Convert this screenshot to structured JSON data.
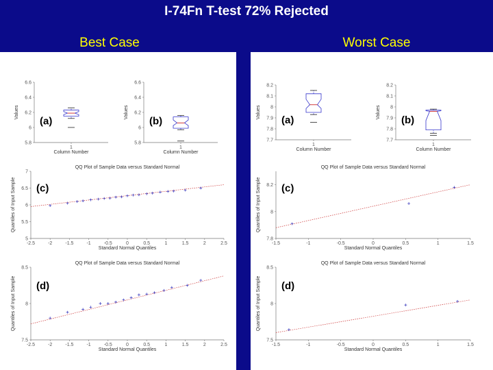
{
  "title": "I-74Fn T-test 72% Rejected",
  "columns": {
    "best": "Best Case",
    "worst": "Worst Case"
  },
  "chart_data": [
    {
      "id": "best-a",
      "type": "box",
      "label": "(a)",
      "xlabel": "Column Number",
      "ylabel": "Values",
      "xticks": [
        "1"
      ],
      "yticks": [
        "5.8",
        "6",
        "6.2",
        "6.4",
        "6.6"
      ],
      "ylim": [
        5.8,
        6.6
      ],
      "box": {
        "whisker_low": 6.12,
        "q1": 6.15,
        "median": 6.19,
        "q3": 6.23,
        "whisker_high": 6.26,
        "outliers": [
          6.0
        ]
      }
    },
    {
      "id": "best-b",
      "type": "box",
      "label": "(b)",
      "xlabel": "Column Number",
      "ylabel": "Values",
      "xticks": [
        "1"
      ],
      "yticks": [
        "5.8",
        "6",
        "6.2",
        "6.4",
        "6.6"
      ],
      "ylim": [
        5.8,
        6.6
      ],
      "box": {
        "whisker_low": 5.97,
        "q1": 5.99,
        "median": 6.06,
        "q3": 6.14,
        "whisker_high": 6.16,
        "outliers": [
          5.82
        ]
      }
    },
    {
      "id": "best-c",
      "type": "scatter",
      "label": "(c)",
      "title": "QQ Plot of Sample Data versus Standard Normal",
      "xlabel": "Standard Normal Quantiles",
      "ylabel": "Quantiles of Input Sample",
      "xticks": [
        "-2.5",
        "-2",
        "-1.5",
        "-1",
        "-0.5",
        "0",
        "0.5",
        "1",
        "1.5",
        "2",
        "2.5"
      ],
      "xlim": [
        -2.5,
        2.5
      ],
      "yticks": [
        "5",
        "5.5",
        "6",
        "6.5",
        "7"
      ],
      "ylim": [
        5,
        7
      ],
      "line": {
        "x": [
          -2.5,
          2.5
        ],
        "y": [
          5.95,
          6.6
        ]
      },
      "points": [
        [
          -2.0,
          5.98
        ],
        [
          -1.55,
          6.05
        ],
        [
          -1.3,
          6.1
        ],
        [
          -1.15,
          6.12
        ],
        [
          -0.95,
          6.15
        ],
        [
          -0.75,
          6.17
        ],
        [
          -0.6,
          6.19
        ],
        [
          -0.45,
          6.2
        ],
        [
          -0.3,
          6.23
        ],
        [
          -0.15,
          6.24
        ],
        [
          0.0,
          6.27
        ],
        [
          0.15,
          6.29
        ],
        [
          0.3,
          6.3
        ],
        [
          0.5,
          6.33
        ],
        [
          0.65,
          6.35
        ],
        [
          0.85,
          6.38
        ],
        [
          1.05,
          6.4
        ],
        [
          1.2,
          6.41
        ],
        [
          1.5,
          6.44
        ],
        [
          1.9,
          6.5
        ]
      ]
    },
    {
      "id": "best-d",
      "type": "scatter",
      "label": "(d)",
      "title": "QQ Plot of Sample Data versus Standard Normal",
      "xlabel": "Standard Normal Quantiles",
      "ylabel": "Quantiles of Input Sample",
      "xticks": [
        "-2.5",
        "-2",
        "-1.5",
        "-1",
        "-0.5",
        "0",
        "0.5",
        "1",
        "1.5",
        "2",
        "2.5"
      ],
      "xlim": [
        -2.5,
        2.5
      ],
      "yticks": [
        "7.5",
        "8",
        "8.5"
      ],
      "ylim": [
        7.5,
        8.5
      ],
      "line": {
        "x": [
          -2.5,
          2.5
        ],
        "y": [
          7.72,
          8.38
        ]
      },
      "points": [
        [
          -2.0,
          7.8
        ],
        [
          -1.55,
          7.88
        ],
        [
          -1.15,
          7.92
        ],
        [
          -0.95,
          7.95
        ],
        [
          -0.7,
          8.0
        ],
        [
          -0.5,
          8.0
        ],
        [
          -0.3,
          8.02
        ],
        [
          -0.1,
          8.05
        ],
        [
          0.1,
          8.08
        ],
        [
          0.3,
          8.12
        ],
        [
          0.5,
          8.13
        ],
        [
          0.7,
          8.15
        ],
        [
          0.95,
          8.18
        ],
        [
          1.15,
          8.22
        ],
        [
          1.55,
          8.25
        ],
        [
          1.9,
          8.32
        ]
      ]
    },
    {
      "id": "worst-a",
      "type": "box",
      "label": "(a)",
      "xlabel": "Column Number",
      "ylabel": "Values",
      "xticks": [
        "1"
      ],
      "yticks": [
        "7.7",
        "7.8",
        "7.9",
        "8",
        "8.1",
        "8.2"
      ],
      "ylim": [
        7.7,
        8.2
      ],
      "box": {
        "whisker_low": 7.93,
        "q1": 7.95,
        "median": 8.02,
        "q3": 8.12,
        "whisker_high": 8.15,
        "outliers": [
          7.86
        ]
      }
    },
    {
      "id": "worst-b",
      "type": "box",
      "label": "(b)",
      "xlabel": "Column Number",
      "ylabel": "Values",
      "xticks": [
        "1"
      ],
      "yticks": [
        "7.7",
        "7.8",
        "7.9",
        "8",
        "8.1",
        "8.2"
      ],
      "ylim": [
        7.7,
        8.2
      ],
      "box": {
        "whisker_low": 7.76,
        "q1": 7.79,
        "median": 7.96,
        "q3": 7.97,
        "whisker_high": 7.98,
        "outliers": [
          7.74
        ]
      }
    },
    {
      "id": "worst-c",
      "type": "scatter",
      "label": "(c)",
      "title": "QQ Plot of Sample Data versus Standard Normal",
      "xlabel": "Standard Normal Quantiles",
      "ylabel": "Quantiles of Input Sample",
      "xticks": [
        "-1.5",
        "-1",
        "-0.5",
        "0",
        "0.5",
        "1",
        "1.5"
      ],
      "xlim": [
        -1.5,
        1.5
      ],
      "yticks": [
        "7.8",
        "8",
        "8.2"
      ],
      "ylim": [
        7.8,
        8.3
      ],
      "line": {
        "x": [
          -1.5,
          1.5
        ],
        "y": [
          7.88,
          8.2
        ]
      },
      "points": [
        [
          -1.25,
          7.91
        ],
        [
          0.55,
          8.06
        ],
        [
          1.25,
          8.18
        ]
      ]
    },
    {
      "id": "worst-d",
      "type": "scatter",
      "label": "(d)",
      "title": "QQ Plot of Sample Data versus Standard Normal",
      "xlabel": "Standard Normal Quantiles",
      "ylabel": "Quantiles of Input Sample",
      "xticks": [
        "-1.5",
        "-1",
        "-0.5",
        "0",
        "0.5",
        "1",
        "1.5"
      ],
      "xlim": [
        -1.5,
        1.5
      ],
      "yticks": [
        "7.5",
        "8",
        "8.5"
      ],
      "ylim": [
        7.5,
        8.5
      ],
      "line": {
        "x": [
          -1.5,
          1.5
        ],
        "y": [
          7.6,
          8.05
        ]
      },
      "points": [
        [
          -1.3,
          7.64
        ],
        [
          0.5,
          7.98
        ],
        [
          1.3,
          8.03
        ]
      ]
    }
  ]
}
